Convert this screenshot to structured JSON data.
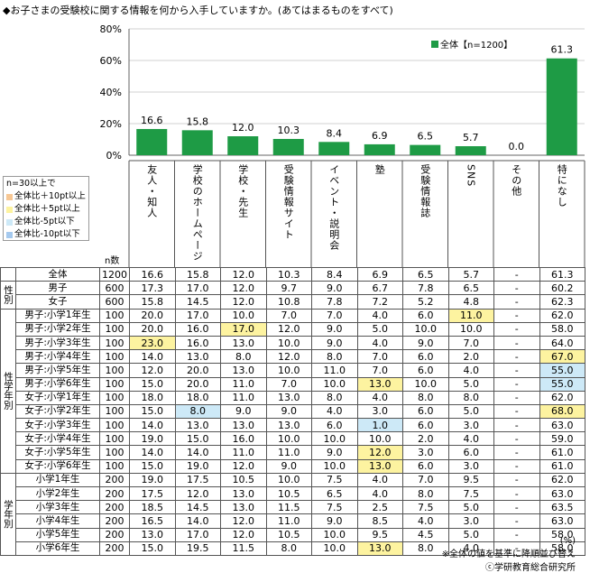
{
  "title": "◆お子さまの受験校に関する情報を何から入手していますか。(あてはまるものをすべて)",
  "legend_overall": "全体【n=1200】",
  "ncount_label": "n数",
  "highlight_legend": {
    "note": "n=30以上で",
    "items": [
      {
        "label": "全体比＋10pt以上",
        "color": "#f7c794"
      },
      {
        "label": "全体比＋5pt以上",
        "color": "#fdf3a0"
      },
      {
        "label": "全体比-5pt以下",
        "color": "#cde9f7"
      },
      {
        "label": "全体比-10pt以下",
        "color": "#a5c9ee"
      }
    ]
  },
  "chart_data": {
    "type": "bar",
    "categories": [
      "友人・知人",
      "学校のホームページ",
      "学校・先生",
      "受験情報サイト",
      "イベント・説明会",
      "塾",
      "受験情報誌",
      "SNS",
      "その他",
      "特になし"
    ],
    "series": [
      {
        "name": "全体【n=1200】",
        "values": [
          16.6,
          15.8,
          12.0,
          10.3,
          8.4,
          6.9,
          6.5,
          5.7,
          0.0,
          61.3
        ]
      }
    ],
    "value_labels": [
      "16.6",
      "15.8",
      "12.0",
      "10.3",
      "8.4",
      "6.9",
      "6.5",
      "5.7",
      "0.0",
      "61.3"
    ],
    "yticks": [
      "0%",
      "20%",
      "40%",
      "60%",
      "80%"
    ],
    "ylim": [
      0,
      80
    ],
    "bar_color": "#1e9b45",
    "grid": true
  },
  "table": {
    "groups": [
      {
        "label": "",
        "rows": [
          {
            "label": "全体",
            "n": "1200",
            "values": [
              "16.6",
              "15.8",
              "12.0",
              "10.3",
              "8.4",
              "6.9",
              "6.5",
              "5.7",
              "-",
              "61.3"
            ],
            "hl": [
              "",
              "",
              "",
              "",
              "",
              "",
              "",
              "",
              "",
              ""
            ]
          }
        ]
      },
      {
        "label": "性別",
        "rows": [
          {
            "label": "男子",
            "n": "600",
            "values": [
              "17.3",
              "17.0",
              "12.0",
              "9.7",
              "9.0",
              "6.7",
              "7.8",
              "6.5",
              "-",
              "60.2"
            ],
            "hl": [
              "",
              "",
              "",
              "",
              "",
              "",
              "",
              "",
              "",
              ""
            ]
          },
          {
            "label": "女子",
            "n": "600",
            "values": [
              "15.8",
              "14.5",
              "12.0",
              "10.8",
              "7.8",
              "7.2",
              "5.2",
              "4.8",
              "-",
              "62.3"
            ],
            "hl": [
              "",
              "",
              "",
              "",
              "",
              "",
              "",
              "",
              "",
              ""
            ]
          }
        ]
      },
      {
        "label": "性学年別",
        "rows": [
          {
            "label": "男子:小学1年生",
            "n": "100",
            "values": [
              "20.0",
              "17.0",
              "10.0",
              "7.0",
              "7.0",
              "4.0",
              "6.0",
              "11.0",
              "-",
              "62.0"
            ],
            "hl": [
              "",
              "",
              "",
              "",
              "",
              "",
              "",
              "yellow",
              "",
              ""
            ]
          },
          {
            "label": "男子:小学2年生",
            "n": "100",
            "values": [
              "20.0",
              "16.0",
              "17.0",
              "12.0",
              "9.0",
              "5.0",
              "10.0",
              "10.0",
              "-",
              "58.0"
            ],
            "hl": [
              "",
              "",
              "yellow",
              "",
              "",
              "",
              "",
              "",
              "",
              ""
            ]
          },
          {
            "label": "男子:小学3年生",
            "n": "100",
            "values": [
              "23.0",
              "16.0",
              "13.0",
              "10.0",
              "9.0",
              "4.0",
              "9.0",
              "7.0",
              "-",
              "64.0"
            ],
            "hl": [
              "yellow",
              "",
              "",
              "",
              "",
              "",
              "",
              "",
              "",
              ""
            ]
          },
          {
            "label": "男子:小学4年生",
            "n": "100",
            "values": [
              "14.0",
              "13.0",
              "8.0",
              "12.0",
              "8.0",
              "7.0",
              "6.0",
              "2.0",
              "-",
              "67.0"
            ],
            "hl": [
              "",
              "",
              "",
              "",
              "",
              "",
              "",
              "",
              "",
              "yellow"
            ]
          },
          {
            "label": "男子:小学5年生",
            "n": "100",
            "values": [
              "12.0",
              "20.0",
              "13.0",
              "10.0",
              "11.0",
              "7.0",
              "6.0",
              "4.0",
              "-",
              "55.0"
            ],
            "hl": [
              "",
              "",
              "",
              "",
              "",
              "",
              "",
              "",
              "",
              "lblue"
            ]
          },
          {
            "label": "男子:小学6年生",
            "n": "100",
            "values": [
              "15.0",
              "20.0",
              "11.0",
              "7.0",
              "10.0",
              "13.0",
              "10.0",
              "5.0",
              "-",
              "55.0"
            ],
            "hl": [
              "",
              "",
              "",
              "",
              "",
              "yellow",
              "",
              "",
              "",
              "lblue"
            ]
          },
          {
            "label": "女子:小学1年生",
            "n": "100",
            "values": [
              "18.0",
              "18.0",
              "11.0",
              "13.0",
              "8.0",
              "4.0",
              "8.0",
              "8.0",
              "-",
              "62.0"
            ],
            "hl": [
              "",
              "",
              "",
              "",
              "",
              "",
              "",
              "",
              "",
              ""
            ]
          },
          {
            "label": "女子:小学2年生",
            "n": "100",
            "values": [
              "15.0",
              "8.0",
              "9.0",
              "9.0",
              "4.0",
              "3.0",
              "6.0",
              "5.0",
              "-",
              "68.0"
            ],
            "hl": [
              "",
              "lblue",
              "",
              "",
              "",
              "",
              "",
              "",
              "",
              "yellow"
            ]
          },
          {
            "label": "女子:小学3年生",
            "n": "100",
            "values": [
              "14.0",
              "13.0",
              "13.0",
              "13.0",
              "6.0",
              "1.0",
              "6.0",
              "3.0",
              "-",
              "63.0"
            ],
            "hl": [
              "",
              "",
              "",
              "",
              "",
              "lblue",
              "",
              "",
              "",
              ""
            ]
          },
          {
            "label": "女子:小学4年生",
            "n": "100",
            "values": [
              "19.0",
              "15.0",
              "16.0",
              "10.0",
              "10.0",
              "10.0",
              "2.0",
              "4.0",
              "-",
              "59.0"
            ],
            "hl": [
              "",
              "",
              "",
              "",
              "",
              "",
              "",
              "",
              "",
              ""
            ]
          },
          {
            "label": "女子:小学5年生",
            "n": "100",
            "values": [
              "14.0",
              "14.0",
              "11.0",
              "11.0",
              "9.0",
              "12.0",
              "3.0",
              "6.0",
              "-",
              "61.0"
            ],
            "hl": [
              "",
              "",
              "",
              "",
              "",
              "yellow",
              "",
              "",
              "",
              ""
            ]
          },
          {
            "label": "女子:小学6年生",
            "n": "100",
            "values": [
              "15.0",
              "19.0",
              "12.0",
              "9.0",
              "10.0",
              "13.0",
              "6.0",
              "3.0",
              "-",
              "61.0"
            ],
            "hl": [
              "",
              "",
              "",
              "",
              "",
              "yellow",
              "",
              "",
              "",
              ""
            ]
          }
        ]
      },
      {
        "label": "学年別",
        "rows": [
          {
            "label": "小学1年生",
            "n": "200",
            "values": [
              "19.0",
              "17.5",
              "10.5",
              "10.0",
              "7.5",
              "4.0",
              "7.0",
              "9.5",
              "-",
              "62.0"
            ],
            "hl": [
              "",
              "",
              "",
              "",
              "",
              "",
              "",
              "",
              "",
              ""
            ]
          },
          {
            "label": "小学2年生",
            "n": "200",
            "values": [
              "17.5",
              "12.0",
              "13.0",
              "10.5",
              "6.5",
              "4.0",
              "8.0",
              "7.5",
              "-",
              "63.0"
            ],
            "hl": [
              "",
              "",
              "",
              "",
              "",
              "",
              "",
              "",
              "",
              ""
            ]
          },
          {
            "label": "小学3年生",
            "n": "200",
            "values": [
              "18.5",
              "14.5",
              "13.0",
              "11.5",
              "7.5",
              "2.5",
              "7.5",
              "5.0",
              "-",
              "63.5"
            ],
            "hl": [
              "",
              "",
              "",
              "",
              "",
              "",
              "",
              "",
              "",
              ""
            ]
          },
          {
            "label": "小学4年生",
            "n": "200",
            "values": [
              "16.5",
              "14.0",
              "12.0",
              "11.0",
              "9.0",
              "8.5",
              "4.0",
              "3.0",
              "-",
              "63.0"
            ],
            "hl": [
              "",
              "",
              "",
              "",
              "",
              "",
              "",
              "",
              "",
              ""
            ]
          },
          {
            "label": "小学5年生",
            "n": "200",
            "values": [
              "13.0",
              "17.0",
              "12.0",
              "10.5",
              "10.0",
              "9.5",
              "4.5",
              "5.0",
              "-",
              "58.0"
            ],
            "hl": [
              "",
              "",
              "",
              "",
              "",
              "",
              "",
              "",
              "",
              ""
            ]
          },
          {
            "label": "小学6年生",
            "n": "200",
            "values": [
              "15.0",
              "19.5",
              "11.5",
              "8.0",
              "10.0",
              "13.0",
              "8.0",
              "4.0",
              "-",
              "58.0"
            ],
            "hl": [
              "",
              "",
              "",
              "",
              "",
              "yellow",
              "",
              "",
              "",
              ""
            ]
          }
        ]
      }
    ]
  },
  "unit": "(%)",
  "footnote": "※全体の値を基準に降順並び替え",
  "copyright": "ⓒ学研教育総合研究所"
}
